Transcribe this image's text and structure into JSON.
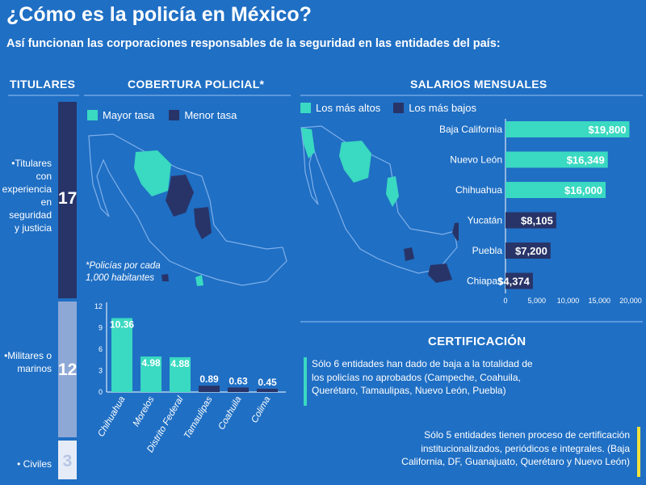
{
  "title": "¿Cómo es la policía en México?",
  "subtitle": "Así funcionan las corporaciones responsables de la seguridad en las entidades del país:",
  "colors": {
    "background": "#1f6fc4",
    "teal": "#3ad9c1",
    "navy": "#283468",
    "titulares_top": "#283468",
    "titulares_mid": "#8ea8d6",
    "titulares_low": "#e6ecf7",
    "yellow": "#f4e23a"
  },
  "titulares": {
    "header": "TITULARES",
    "items": [
      {
        "label": "•Titulares con experiencia en seguridad y justicia",
        "value": "17"
      },
      {
        "label": "•Militares o marinos",
        "value": "12"
      },
      {
        "label": "• Civiles",
        "value": "3"
      }
    ]
  },
  "cobertura": {
    "header": "COBERTURA POLICIAL*",
    "legend": [
      "Mayor tasa",
      "Menor tasa"
    ],
    "note": "*Policías por cada 1,000 habitantes",
    "map_icon": "mexico-map-icon"
  },
  "salarios": {
    "header": "SALARIOS MENSUALES",
    "legend": [
      "Los más altos",
      "Los más bajos"
    ],
    "map_icon": "mexico-map-icon"
  },
  "certificacion": {
    "header": "CERTIFICACIÓN",
    "text1": "Sólo 6 entidades han dado de baja a la totalidad de los policías no aprobados (Campeche, Coahuila, Querétaro, Tamaulipas, Nuevo León, Puebla)",
    "text2": "Sólo 5 entidades tienen proceso de certificación institucionalizados, periódicos e integrales. (Baja California, DF, Guanajuato, Querétaro y Nuevo León)"
  },
  "chart_data": [
    {
      "type": "bar",
      "title": "COBERTURA POLICIAL*",
      "categories": [
        "Chihuahua",
        "Morelos",
        "Distrito Federal",
        "Tamaulipas",
        "Coahuila",
        "Colima"
      ],
      "values": [
        10.36,
        4.98,
        4.88,
        0.89,
        0.63,
        0.45
      ],
      "value_labels": [
        "10.36",
        "4.98",
        "4.88",
        "0.89",
        "0.63",
        "0.45"
      ],
      "ticks": [
        "0",
        "3",
        "6",
        "9",
        "12"
      ],
      "ylim": [
        0,
        12
      ],
      "colors_by_group": [
        "teal",
        "teal",
        "teal",
        "navy",
        "navy",
        "navy"
      ]
    },
    {
      "type": "bar",
      "orientation": "horizontal",
      "title": "SALARIOS MENSUALES",
      "categories": [
        "Baja California",
        "Nuevo León",
        "Chihuahua",
        "Yucatán",
        "Puebla",
        "Chiapas"
      ],
      "values": [
        19800,
        16349,
        16000,
        8105,
        7200,
        4374
      ],
      "value_labels": [
        "$19,800",
        "$16,349",
        "$16,000",
        "$8,105",
        "$7,200",
        "$4,374"
      ],
      "ticks": [
        "0",
        "5,000",
        "10,000",
        "15,000",
        "20,000"
      ],
      "xlim": [
        0,
        20000
      ],
      "colors_by_group": [
        "teal",
        "teal",
        "teal",
        "navy",
        "navy",
        "navy"
      ]
    }
  ]
}
